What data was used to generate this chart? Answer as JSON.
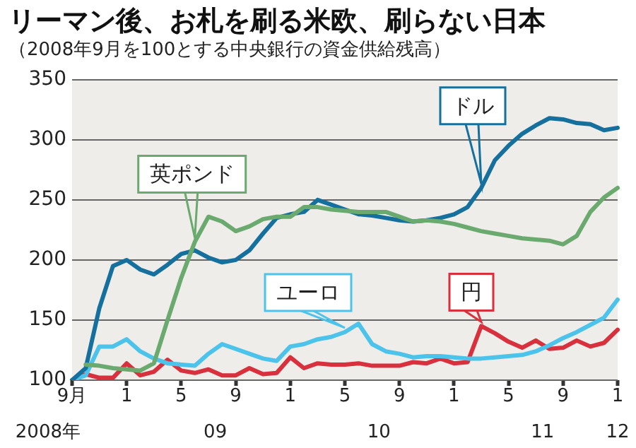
{
  "chart_data": {
    "type": "line",
    "title": "リーマン後、お札を刷る米欧、刷らない日本",
    "subtitle": "（2008年9月を100とする中央銀行の資金供給残高）",
    "categories": [
      "9月",
      null,
      null,
      null,
      "1",
      null,
      null,
      null,
      "5",
      null,
      null,
      null,
      "9",
      null,
      null,
      null,
      "1",
      null,
      null,
      null,
      "5",
      null,
      null,
      null,
      "9",
      null,
      null,
      null,
      "1",
      null,
      null,
      null,
      "5",
      null,
      null,
      null,
      "9",
      null,
      null,
      null,
      "1"
    ],
    "series": [
      {
        "name": "英ポンド",
        "color": "#6aaa6e",
        "values": [
          null,
          113,
          112,
          110,
          109,
          108,
          114,
          150,
          185,
          215,
          236,
          232,
          224,
          228,
          234,
          236,
          236,
          244,
          244,
          242,
          241,
          240,
          240,
          240,
          236,
          232,
          233,
          232,
          230,
          227,
          224,
          222,
          220,
          218,
          217,
          216,
          213,
          220,
          240,
          252,
          260
        ]
      },
      {
        "name": "ドル",
        "color": "#16709e",
        "values": [
          100,
          110,
          160,
          195,
          200,
          192,
          188,
          196,
          205,
          208,
          202,
          198,
          200,
          208,
          222,
          235,
          238,
          240,
          250,
          246,
          242,
          238,
          237,
          235,
          233,
          232,
          233,
          235,
          238,
          244,
          260,
          283,
          295,
          305,
          312,
          318,
          317,
          314,
          313,
          308,
          310
        ]
      },
      {
        "name": "ユーロ",
        "color": "#4cc3ea",
        "values": [
          100,
          104,
          128,
          128,
          134,
          124,
          118,
          114,
          113,
          112,
          122,
          130,
          126,
          122,
          118,
          116,
          128,
          130,
          134,
          136,
          140,
          147,
          130,
          124,
          122,
          119,
          120,
          120,
          119,
          118,
          118,
          119,
          120,
          121,
          124,
          129,
          135,
          140,
          146,
          152,
          167
        ]
      },
      {
        "name": "円",
        "color": "#d8303c",
        "values": [
          100,
          105,
          102,
          102,
          114,
          104,
          107,
          117,
          108,
          106,
          109,
          104,
          104,
          110,
          105,
          106,
          119,
          110,
          114,
          113,
          113,
          114,
          112,
          112,
          112,
          115,
          114,
          118,
          114,
          115,
          145,
          139,
          132,
          127,
          133,
          126,
          127,
          133,
          128,
          131,
          142
        ]
      }
    ],
    "ylim": [
      100,
      350
    ],
    "yticks": [
      100,
      150,
      200,
      250,
      300,
      350
    ],
    "grid": "y",
    "legend": false,
    "marker": "none",
    "line_style": "solid",
    "annotations": [
      "2008年",
      "09",
      "10",
      "11",
      "12"
    ]
  }
}
